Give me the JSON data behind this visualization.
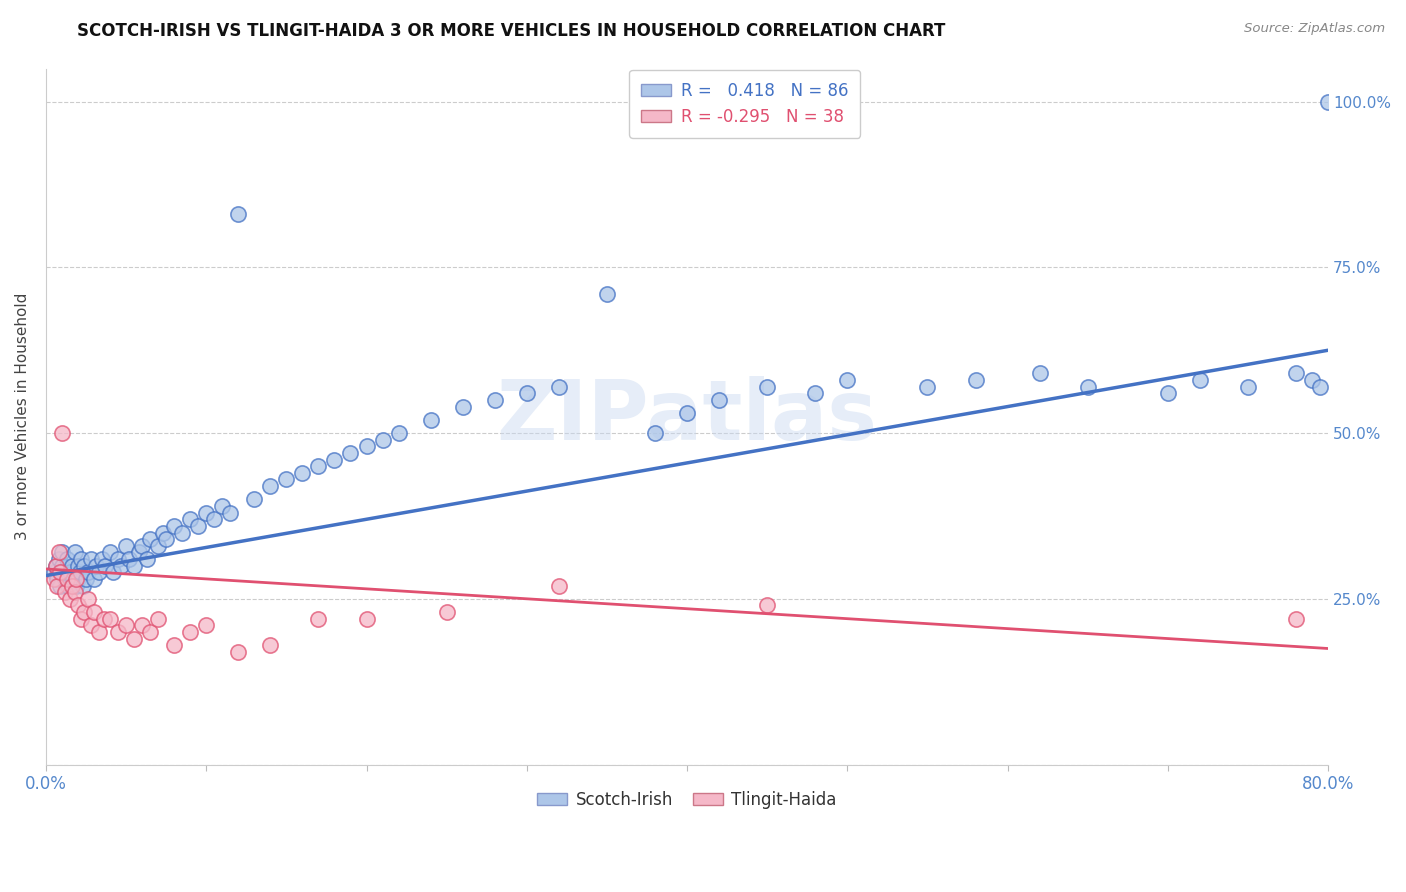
{
  "title": "SCOTCH-IRISH VS TLINGIT-HAIDA 3 OR MORE VEHICLES IN HOUSEHOLD CORRELATION CHART",
  "source": "Source: ZipAtlas.com",
  "ylabel": "3 or more Vehicles in Household",
  "ylabel_right_ticks": [
    "25.0%",
    "50.0%",
    "75.0%",
    "100.0%"
  ],
  "ylabel_right_values": [
    0.25,
    0.5,
    0.75,
    1.0
  ],
  "xmin": 0.0,
  "xmax": 0.8,
  "ymin": 0.0,
  "ymax": 1.05,
  "legend_label1": "Scotch-Irish",
  "legend_label2": "Tlingit-Haida",
  "r1": 0.418,
  "n1": 86,
  "r2": -0.295,
  "n2": 38,
  "color_blue": "#adc6e8",
  "color_pink": "#f5b8c8",
  "line_blue": "#4472c4",
  "line_pink": "#e05070",
  "watermark": "ZIPatlas",
  "watermark_color": "#c8d8f0",
  "blue_line_start_y": 0.285,
  "blue_line_end_y": 0.625,
  "pink_line_start_y": 0.295,
  "pink_line_end_y": 0.175,
  "blue_x": [
    0.005,
    0.006,
    0.007,
    0.008,
    0.009,
    0.01,
    0.01,
    0.01,
    0.012,
    0.013,
    0.014,
    0.015,
    0.016,
    0.017,
    0.018,
    0.019,
    0.02,
    0.02,
    0.021,
    0.022,
    0.023,
    0.024,
    0.025,
    0.026,
    0.028,
    0.03,
    0.031,
    0.033,
    0.035,
    0.037,
    0.04,
    0.042,
    0.045,
    0.047,
    0.05,
    0.052,
    0.055,
    0.058,
    0.06,
    0.063,
    0.065,
    0.07,
    0.073,
    0.075,
    0.08,
    0.085,
    0.09,
    0.095,
    0.1,
    0.105,
    0.11,
    0.115,
    0.12,
    0.13,
    0.14,
    0.15,
    0.16,
    0.17,
    0.18,
    0.19,
    0.2,
    0.21,
    0.22,
    0.24,
    0.26,
    0.28,
    0.3,
    0.32,
    0.35,
    0.38,
    0.4,
    0.42,
    0.45,
    0.48,
    0.5,
    0.55,
    0.58,
    0.62,
    0.65,
    0.7,
    0.72,
    0.75,
    0.78,
    0.79,
    0.795,
    0.8
  ],
  "blue_y": [
    0.29,
    0.3,
    0.28,
    0.31,
    0.27,
    0.3,
    0.32,
    0.29,
    0.28,
    0.31,
    0.27,
    0.29,
    0.3,
    0.28,
    0.32,
    0.27,
    0.3,
    0.28,
    0.29,
    0.31,
    0.27,
    0.3,
    0.28,
    0.29,
    0.31,
    0.28,
    0.3,
    0.29,
    0.31,
    0.3,
    0.32,
    0.29,
    0.31,
    0.3,
    0.33,
    0.31,
    0.3,
    0.32,
    0.33,
    0.31,
    0.34,
    0.33,
    0.35,
    0.34,
    0.36,
    0.35,
    0.37,
    0.36,
    0.38,
    0.37,
    0.39,
    0.38,
    0.83,
    0.4,
    0.42,
    0.43,
    0.44,
    0.45,
    0.46,
    0.47,
    0.48,
    0.49,
    0.5,
    0.52,
    0.54,
    0.55,
    0.56,
    0.57,
    0.71,
    0.5,
    0.53,
    0.55,
    0.57,
    0.56,
    0.58,
    0.57,
    0.58,
    0.59,
    0.57,
    0.56,
    0.58,
    0.57,
    0.59,
    0.58,
    0.57,
    1.0
  ],
  "pink_x": [
    0.005,
    0.006,
    0.007,
    0.008,
    0.009,
    0.01,
    0.012,
    0.013,
    0.015,
    0.016,
    0.018,
    0.019,
    0.02,
    0.022,
    0.024,
    0.026,
    0.028,
    0.03,
    0.033,
    0.036,
    0.04,
    0.045,
    0.05,
    0.055,
    0.06,
    0.065,
    0.07,
    0.08,
    0.09,
    0.1,
    0.12,
    0.14,
    0.17,
    0.2,
    0.25,
    0.32,
    0.45,
    0.78
  ],
  "pink_y": [
    0.28,
    0.3,
    0.27,
    0.32,
    0.29,
    0.5,
    0.26,
    0.28,
    0.25,
    0.27,
    0.26,
    0.28,
    0.24,
    0.22,
    0.23,
    0.25,
    0.21,
    0.23,
    0.2,
    0.22,
    0.22,
    0.2,
    0.21,
    0.19,
    0.21,
    0.2,
    0.22,
    0.18,
    0.2,
    0.21,
    0.17,
    0.18,
    0.22,
    0.22,
    0.23,
    0.27,
    0.24,
    0.22
  ]
}
